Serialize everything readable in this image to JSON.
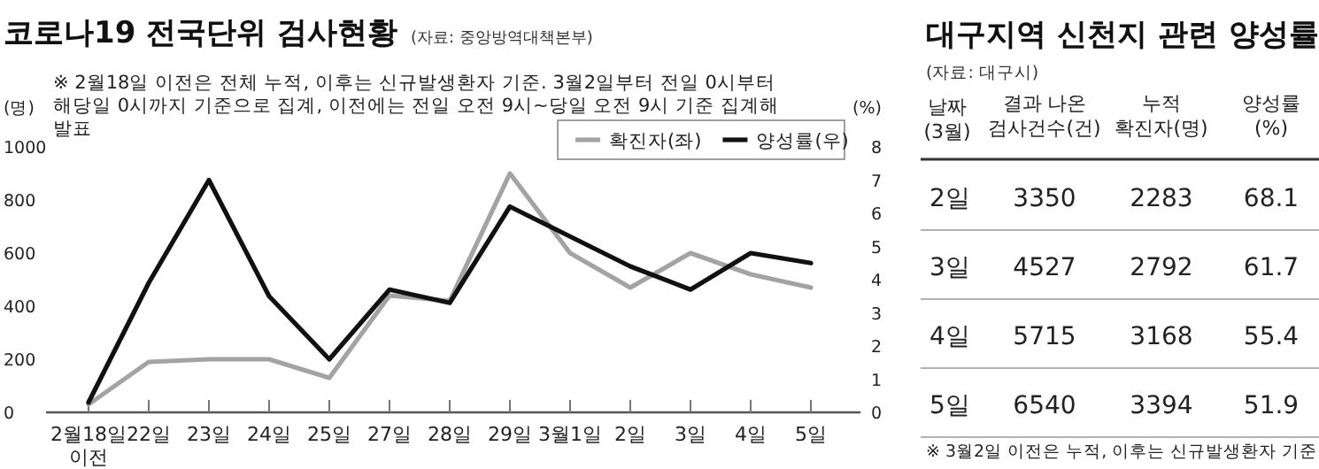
{
  "chart_data": [
    {
      "type": "line",
      "title": "코로나19 전국단위 검사현황",
      "subtitle": "(자료: 중앙방역대책본부)",
      "annotations": [
        "※ 2월18일 이전은 전체 누적, 이후는 신규발생환자 기준. 3월2일부터 전일 0시부터 해당일 0시까지 기준으로 집계, 이전에는 전일 오전 9시~당일 오전 9시 기준 집계해 발표"
      ],
      "ylabel": "(명)",
      "y2label": "(%)",
      "categories": [
        "2월18일 이전",
        "22일",
        "23일",
        "24일",
        "25일",
        "27일",
        "28일",
        "29일",
        "3월1일",
        "2일",
        "3일",
        "4일",
        "5일"
      ],
      "series": [
        {
          "name": "확진자(좌)",
          "color": "#a3a3a3",
          "values": [
            30,
            190,
            200,
            200,
            130,
            440,
            420,
            900,
            600,
            470,
            600,
            520,
            470
          ]
        },
        {
          "name": "양성률(우)",
          "color": "#111111",
          "axis": "y2",
          "values": [
            0.3,
            3.9,
            7.0,
            3.5,
            1.6,
            3.7,
            3.3,
            6.2,
            5.3,
            4.4,
            3.7,
            4.8,
            4.5
          ]
        }
      ],
      "ylim": [
        0,
        1000
      ],
      "yticks": [
        0,
        200,
        400,
        600,
        800,
        1000
      ],
      "y2lim": [
        0,
        8
      ],
      "y2ticks": [
        0,
        1,
        2,
        3,
        4,
        5,
        6,
        7,
        8
      ],
      "legend": "top right",
      "line_style": "solid"
    },
    {
      "type": "heatmap",
      "title": "대구지역 신천지 관련 양성률",
      "subtitle": "(자료: 대구시)",
      "ylabel": "날짜 (3월)",
      "categories": [
        "결과 나온 검사건수(건)",
        "누적 확진자(명)",
        "양성률 (%)"
      ],
      "y_categories": [
        "2일",
        "3일",
        "4일",
        "5일"
      ],
      "cells": [
        [
          3350,
          2283,
          68.1
        ],
        [
          4527,
          2792,
          61.7
        ],
        [
          5715,
          3168,
          55.4
        ],
        [
          6540,
          3394,
          51.9
        ]
      ],
      "data_labels": true,
      "annotations": [
        "※ 3월2일 이전은 누적, 이후는 신규발생환자 기준"
      ]
    }
  ]
}
